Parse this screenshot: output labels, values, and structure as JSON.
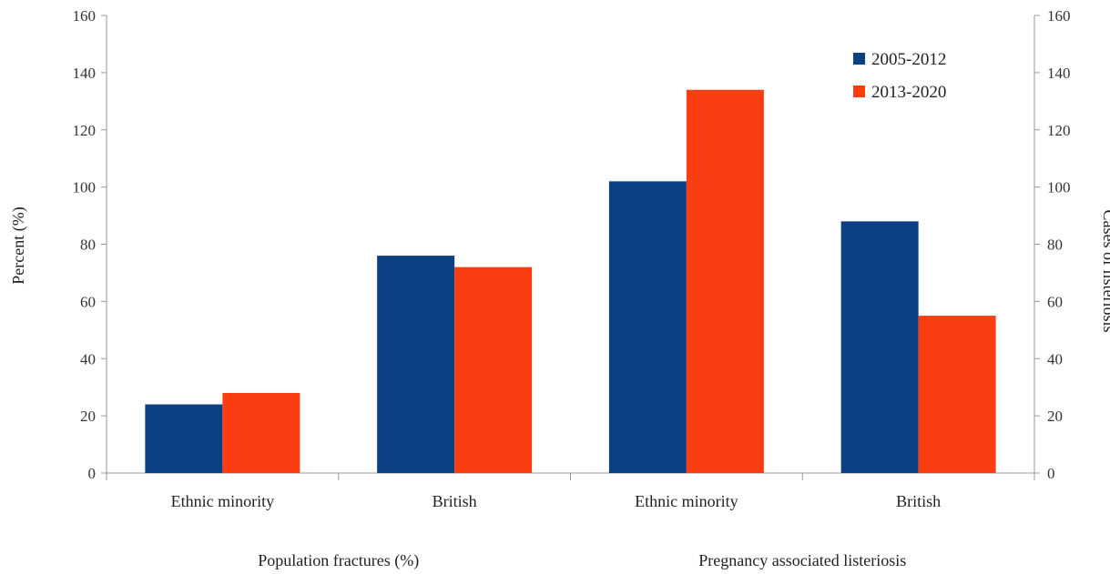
{
  "chart_data": {
    "type": "bar",
    "categories": [
      "Ethnic minority",
      "British",
      "Ethnic minority",
      "British"
    ],
    "groups": [
      {
        "label": "Population fractures (%)",
        "category_indices": [
          0,
          1
        ]
      },
      {
        "label": "Pregnancy associated listeriosis",
        "category_indices": [
          2,
          3
        ]
      }
    ],
    "series": [
      {
        "name": "2005-2012",
        "values": [
          24,
          76,
          102,
          88
        ],
        "color": "#0d3f83"
      },
      {
        "name": "2013-2020",
        "values": [
          28,
          72,
          134,
          55
        ],
        "color": "#fb3d12"
      }
    ],
    "ylabel_left": "Percent (%)",
    "ylabel_right": "Cases of listeriosis",
    "ylim": [
      0,
      160
    ],
    "yticks": [
      0,
      20,
      40,
      60,
      80,
      100,
      120,
      140,
      160
    ],
    "legend_position": "top-right",
    "grid": false
  }
}
